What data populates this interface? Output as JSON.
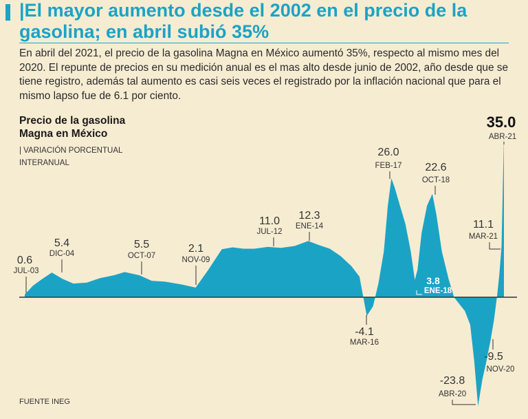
{
  "headline": "|El mayor aumento desde el 2002 en el precio de la gasolina; en abril subió 35%",
  "intro": "En abril del 2021, el precio de la gasolina Magna en México aumentó 35%, respecto al mismo mes del 2020. El repunte de precios en su medición anual es el mas alto desde junio de 2002, año desde que se tiene registro, además tal aumento es casi seis veces el registrado por la inflación nacional que para el mismo lapso fue de 6.1 por ciento.",
  "chart_title": "Precio de la gasolina Magna en México",
  "chart_subtitle": "| VARIACIÓN PORCENTUAL INTERANUAL",
  "source": "FUENTE INEG",
  "colors": {
    "area": "#1ba3c6",
    "accent": "#1ba3c6",
    "background": "#f6ecd2"
  },
  "chart_data": {
    "type": "area",
    "title": "Precio de la gasolina Magna en México",
    "ylabel": "Variación porcentual interanual",
    "xlabel": "",
    "x_range": [
      2003.5,
      2021.25
    ],
    "ylim": [
      -24,
      36
    ],
    "series": [
      {
        "name": "Precio de la gasolina Magna",
        "x": [
          2003.5,
          2003.8,
          2004.1,
          2004.5,
          2004.9,
          2005.3,
          2005.8,
          2006.3,
          2006.8,
          2007.2,
          2007.75,
          2008.2,
          2008.7,
          2009.3,
          2009.83,
          2010.3,
          2010.8,
          2011.2,
          2011.6,
          2012.0,
          2012.5,
          2013.0,
          2013.5,
          2014.0,
          2014.4,
          2014.8,
          2015.2,
          2015.6,
          2015.9,
          2016.17,
          2016.4,
          2016.6,
          2016.8,
          2016.95,
          2017.08,
          2017.2,
          2017.4,
          2017.6,
          2017.8,
          2017.95,
          2018.05,
          2018.2,
          2018.4,
          2018.6,
          2018.75,
          2018.95,
          2019.2,
          2019.4,
          2019.6,
          2019.8,
          2020.0,
          2020.15,
          2020.29,
          2020.45,
          2020.6,
          2020.75,
          2020.88,
          2021.0,
          2021.08,
          2021.16,
          2021.25
        ],
        "values": [
          0.6,
          2.5,
          3.8,
          5.4,
          4.0,
          3.0,
          3.2,
          4.2,
          4.8,
          5.5,
          4.8,
          3.6,
          3.4,
          2.8,
          2.1,
          6.0,
          10.5,
          10.9,
          10.6,
          10.6,
          11.0,
          10.8,
          11.2,
          12.3,
          11.4,
          10.6,
          9.0,
          6.8,
          4.5,
          -4.1,
          -2.0,
          3.0,
          10.0,
          20.0,
          26.0,
          24.0,
          20.0,
          16.0,
          10.0,
          3.8,
          6.0,
          14.0,
          20.0,
          22.6,
          18.0,
          10.0,
          4.0,
          0.0,
          -1.5,
          -3.0,
          -6.0,
          -14.0,
          -23.8,
          -18.0,
          -14.0,
          -9.5,
          -5.0,
          0.5,
          5.0,
          11.1,
          35.0
        ]
      }
    ],
    "annotations": [
      {
        "value": "0.6",
        "date": "JUL-03"
      },
      {
        "value": "5.4",
        "date": "DIC-04"
      },
      {
        "value": "5.5",
        "date": "OCT-07"
      },
      {
        "value": "2.1",
        "date": "NOV-09"
      },
      {
        "value": "11.0",
        "date": "JUL-12"
      },
      {
        "value": "12.3",
        "date": "ENE-14"
      },
      {
        "value": "-4.1",
        "date": "MAR-16"
      },
      {
        "value": "26.0",
        "date": "FEB-17"
      },
      {
        "value": "3.8",
        "date": "ENE-18"
      },
      {
        "value": "22.6",
        "date": "OCT-18"
      },
      {
        "value": "-23.8",
        "date": "ABR-20"
      },
      {
        "value": "-9.5",
        "date": "NOV-20"
      },
      {
        "value": "11.1",
        "date": "MAR-21"
      },
      {
        "value": "35.0",
        "date": "ABR-21"
      }
    ]
  }
}
